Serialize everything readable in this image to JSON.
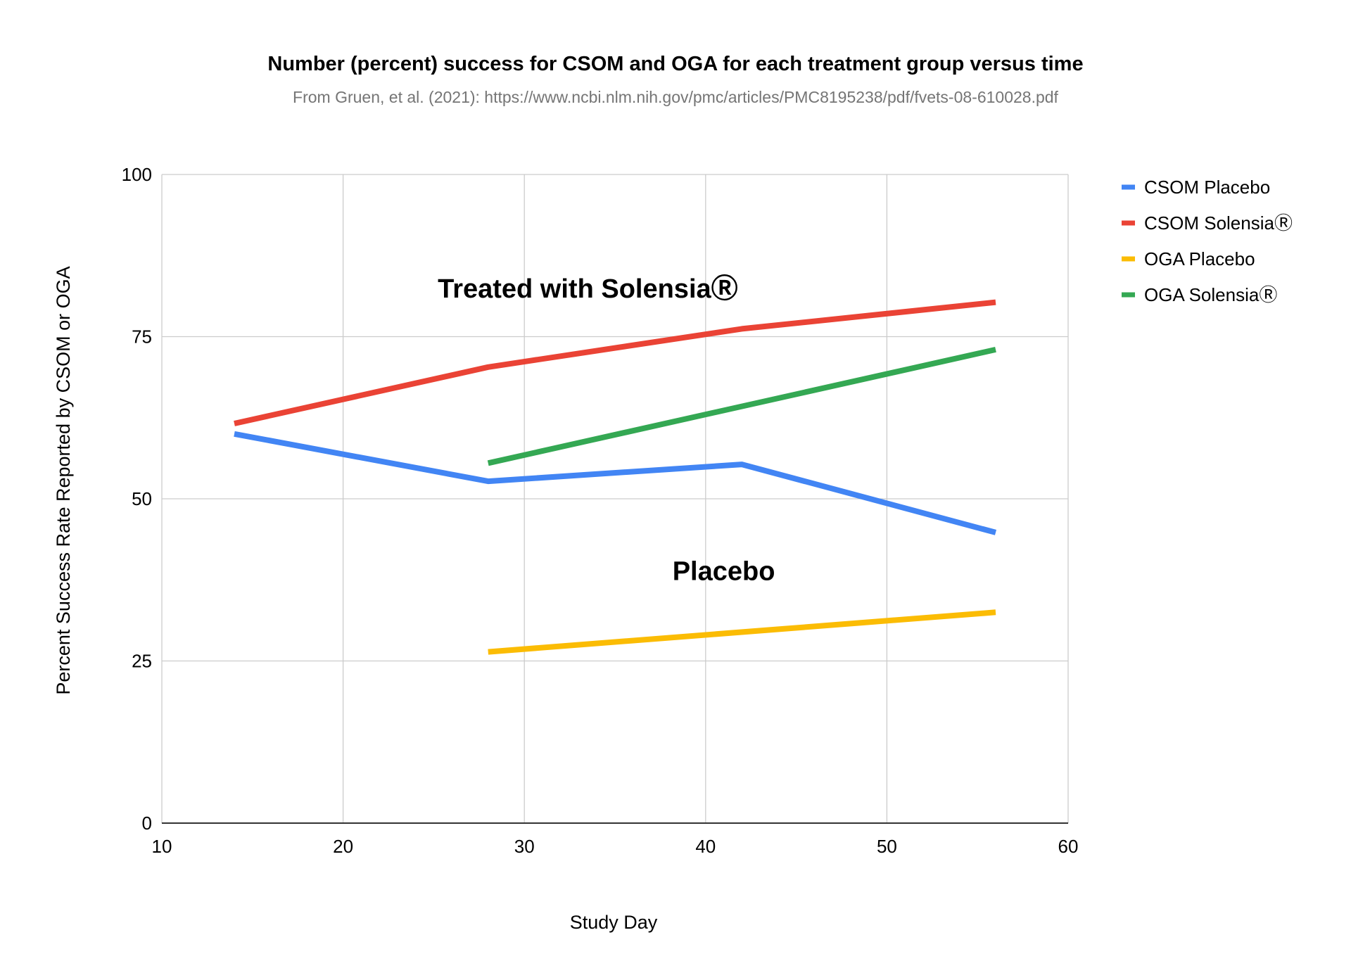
{
  "chart_data": {
    "type": "line",
    "title": "Number (percent) success for CSOM and OGA for each treatment group versus time",
    "subtitle": "From Gruen, et al. (2021):  https://www.ncbi.nlm.nih.gov/pmc/articles/PMC8195238/pdf/fvets-08-610028.pdf",
    "xlabel": "Study Day",
    "ylabel": "Percent Success Rate Reported by CSOM or OGA",
    "xlim": [
      10,
      60
    ],
    "ylim": [
      0,
      100
    ],
    "x_ticks": [
      "10",
      "20",
      "30",
      "40",
      "50",
      "60"
    ],
    "y_ticks": [
      "0",
      "25",
      "50",
      "75",
      "100"
    ],
    "grid": true,
    "legend_position": "right",
    "annotations": [
      {
        "text": "Treated with SolensiaⓇ",
        "x": 33.5,
        "y": 81
      },
      {
        "text": "Placebo",
        "x": 41,
        "y": 37.5
      }
    ],
    "series": [
      {
        "name": "CSOM Placebo",
        "color": "#4285f4",
        "x": [
          14,
          28,
          42,
          56
        ],
        "y": [
          60,
          52.7,
          55.3,
          44.8
        ]
      },
      {
        "name": "CSOM SolensiaⓇ",
        "color": "#ea4335",
        "x": [
          14,
          28,
          42,
          56
        ],
        "y": [
          61.6,
          70.3,
          76.2,
          80.3
        ]
      },
      {
        "name": "OGA Placebo",
        "color": "#fbbc04",
        "x": [
          28,
          56
        ],
        "y": [
          26.4,
          32.5
        ]
      },
      {
        "name": "OGA SolensiaⓇ",
        "color": "#34a853",
        "x": [
          28,
          56
        ],
        "y": [
          55.5,
          73
        ]
      }
    ]
  }
}
